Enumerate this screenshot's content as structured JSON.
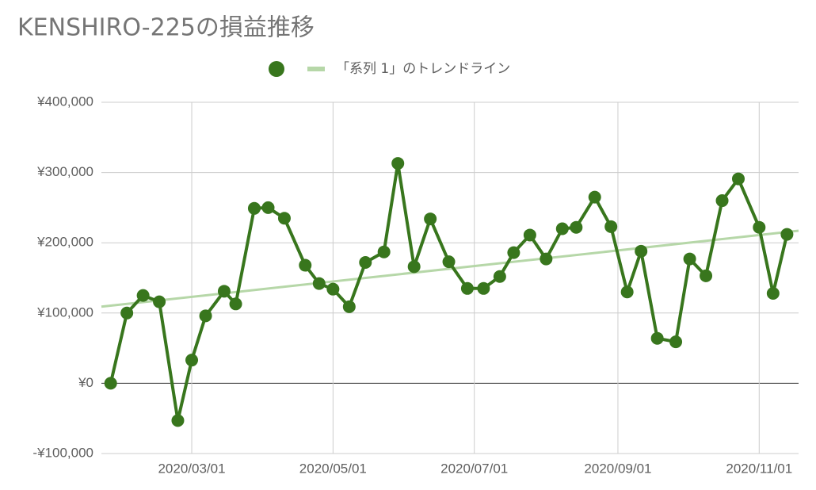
{
  "chart_data": {
    "type": "line",
    "title": "KENSHIRO-225の損益推移",
    "x": [
      "2020/01/26",
      "2020/02/02",
      "2020/02/09",
      "2020/02/16",
      "2020/02/24",
      "2020/03/01",
      "2020/03/07",
      "2020/03/15",
      "2020/03/20",
      "2020/03/28",
      "2020/04/03",
      "2020/04/10",
      "2020/04/19",
      "2020/04/25",
      "2020/05/01",
      "2020/05/08",
      "2020/05/15",
      "2020/05/23",
      "2020/05/29",
      "2020/06/05",
      "2020/06/12",
      "2020/06/20",
      "2020/06/28",
      "2020/07/05",
      "2020/07/12",
      "2020/07/18",
      "2020/07/25",
      "2020/08/01",
      "2020/08/08",
      "2020/08/14",
      "2020/08/22",
      "2020/08/29",
      "2020/09/05",
      "2020/09/11",
      "2020/09/18",
      "2020/09/26",
      "2020/10/02",
      "2020/10/09",
      "2020/10/16",
      "2020/10/23",
      "2020/11/01",
      "2020/11/07",
      "2020/11/13"
    ],
    "series": [
      {
        "color": "#38761d",
        "values": [
          0,
          100000,
          125000,
          116000,
          -53000,
          33000,
          96000,
          131000,
          113000,
          249000,
          250000,
          235000,
          168000,
          142000,
          134000,
          109000,
          172000,
          187000,
          313000,
          166000,
          234000,
          173000,
          135000,
          135000,
          152000,
          186000,
          211000,
          177000,
          220000,
          222000,
          265000,
          223000,
          130000,
          188000,
          64000,
          59000,
          177000,
          153000,
          260000,
          291000,
          222000,
          128000,
          212000
        ]
      }
    ],
    "trendline": {
      "name": "「系列 1」のトレンドライン",
      "color": "#b6d7a8"
    },
    "xlim": [
      "2020/01/22",
      "2020/11/18"
    ],
    "xticks": [
      "2020/03/01",
      "2020/05/01",
      "2020/07/01",
      "2020/09/01",
      "2020/11/01"
    ],
    "ylim": [
      -100000,
      400000
    ],
    "yticks": [
      {
        "value": -100000,
        "label": "-¥100,000"
      },
      {
        "value": 0,
        "label": "¥0"
      },
      {
        "value": 100000,
        "label": "¥100,000"
      },
      {
        "value": 200000,
        "label": "¥200,000"
      },
      {
        "value": 300000,
        "label": "¥300,000"
      },
      {
        "value": 400000,
        "label": "¥400,000"
      }
    ],
    "grid": true
  }
}
